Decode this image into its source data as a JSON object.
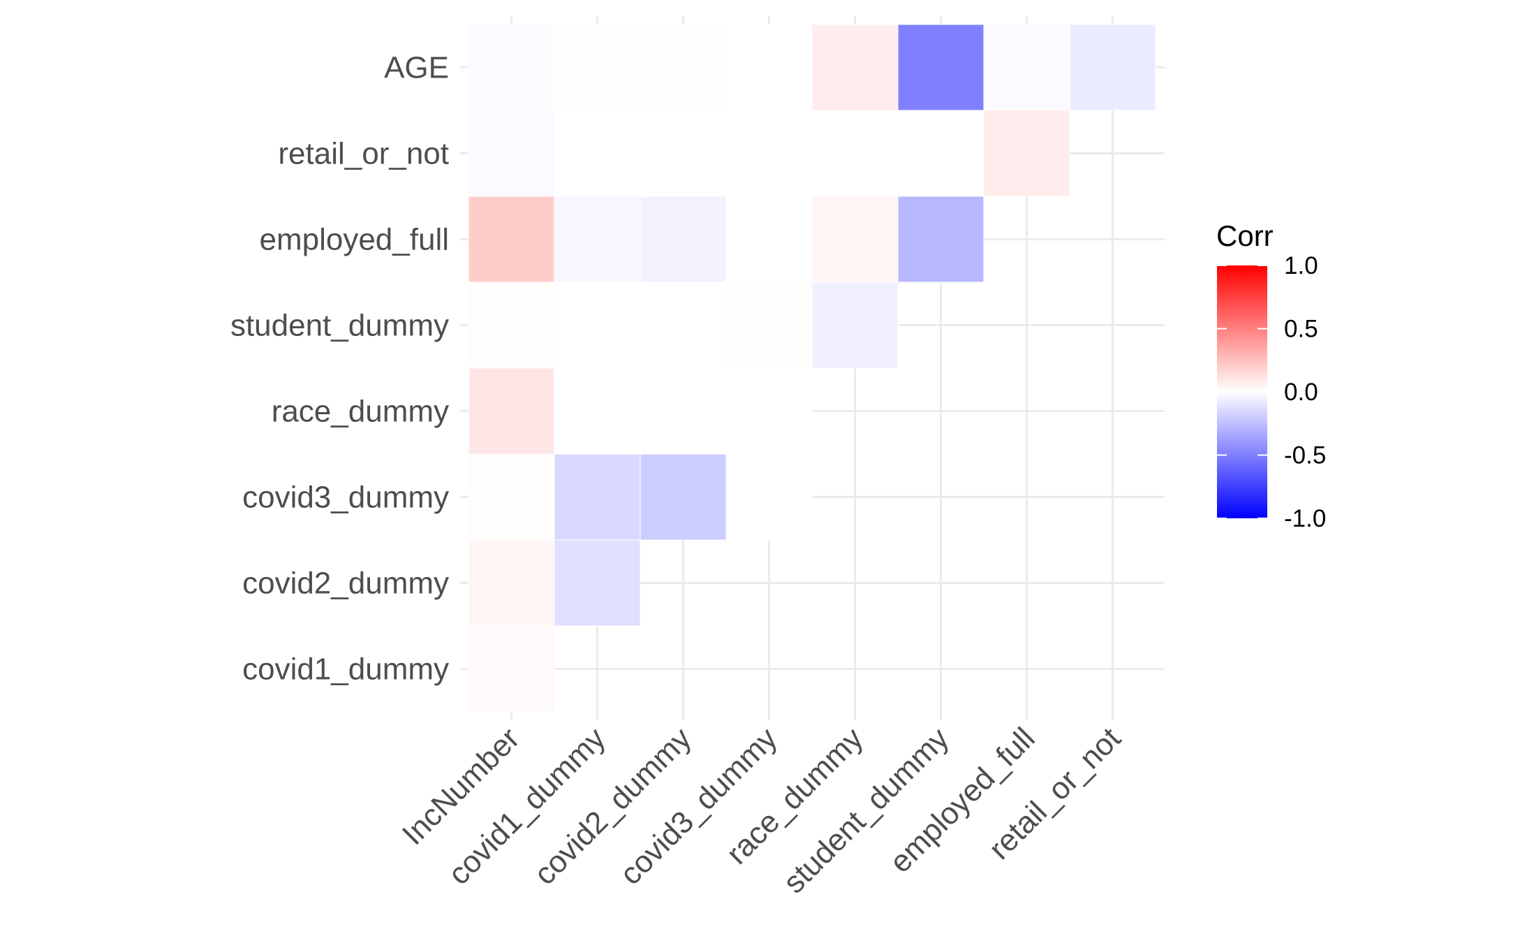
{
  "chart_data": {
    "type": "heatmap",
    "title": "",
    "xlabel": "",
    "ylabel": "",
    "x_categories": [
      "IncNumber",
      "covid1_dummy",
      "covid2_dummy",
      "covid3_dummy",
      "race_dummy",
      "student_dummy",
      "employed_full",
      "retail_or_not"
    ],
    "y_categories": [
      "covid1_dummy",
      "covid2_dummy",
      "covid3_dummy",
      "race_dummy",
      "student_dummy",
      "employed_full",
      "retail_or_not",
      "AGE"
    ],
    "cells": [
      {
        "x": "IncNumber",
        "y": "covid1_dummy",
        "value": 0.02
      },
      {
        "x": "IncNumber",
        "y": "covid2_dummy",
        "value": 0.04
      },
      {
        "x": "covid1_dummy",
        "y": "covid2_dummy",
        "value": -0.12
      },
      {
        "x": "IncNumber",
        "y": "covid3_dummy",
        "value": 0.01
      },
      {
        "x": "covid1_dummy",
        "y": "covid3_dummy",
        "value": -0.15
      },
      {
        "x": "covid2_dummy",
        "y": "covid3_dummy",
        "value": -0.2
      },
      {
        "x": "covid3_dummy",
        "y": "covid3_dummy",
        "value": 0.0
      },
      {
        "x": "IncNumber",
        "y": "race_dummy",
        "value": 0.1
      },
      {
        "x": "covid1_dummy",
        "y": "race_dummy",
        "value": 0.0
      },
      {
        "x": "covid2_dummy",
        "y": "race_dummy",
        "value": 0.0
      },
      {
        "x": "covid3_dummy",
        "y": "race_dummy",
        "value": 0.0
      },
      {
        "x": "IncNumber",
        "y": "student_dummy",
        "value": 0.01
      },
      {
        "x": "covid1_dummy",
        "y": "student_dummy",
        "value": 0.0
      },
      {
        "x": "covid2_dummy",
        "y": "student_dummy",
        "value": 0.0
      },
      {
        "x": "covid3_dummy",
        "y": "student_dummy",
        "value": 0.01
      },
      {
        "x": "race_dummy",
        "y": "student_dummy",
        "value": -0.06
      },
      {
        "x": "IncNumber",
        "y": "employed_full",
        "value": 0.2
      },
      {
        "x": "covid1_dummy",
        "y": "employed_full",
        "value": -0.03
      },
      {
        "x": "covid2_dummy",
        "y": "employed_full",
        "value": -0.05
      },
      {
        "x": "covid3_dummy",
        "y": "employed_full",
        "value": 0.0
      },
      {
        "x": "race_dummy",
        "y": "employed_full",
        "value": 0.04
      },
      {
        "x": "student_dummy",
        "y": "employed_full",
        "value": -0.28
      },
      {
        "x": "IncNumber",
        "y": "retail_or_not",
        "value": -0.02
      },
      {
        "x": "covid1_dummy",
        "y": "retail_or_not",
        "value": 0.0
      },
      {
        "x": "covid2_dummy",
        "y": "retail_or_not",
        "value": 0.0
      },
      {
        "x": "covid3_dummy",
        "y": "retail_or_not",
        "value": 0.0
      },
      {
        "x": "race_dummy",
        "y": "retail_or_not",
        "value": 0.0
      },
      {
        "x": "student_dummy",
        "y": "retail_or_not",
        "value": 0.0
      },
      {
        "x": "employed_full",
        "y": "retail_or_not",
        "value": 0.08
      },
      {
        "x": "IncNumber",
        "y": "AGE",
        "value": -0.02
      },
      {
        "x": "covid1_dummy",
        "y": "AGE",
        "value": 0.01
      },
      {
        "x": "covid2_dummy",
        "y": "AGE",
        "value": 0.01
      },
      {
        "x": "covid3_dummy",
        "y": "AGE",
        "value": 0.0
      },
      {
        "x": "race_dummy",
        "y": "AGE",
        "value": 0.07
      },
      {
        "x": "student_dummy",
        "y": "AGE",
        "value": -0.5
      },
      {
        "x": "employed_full",
        "y": "AGE",
        "value": -0.02
      },
      {
        "x": "retail_or_not",
        "y": "AGE",
        "value": -0.08
      }
    ],
    "legend": {
      "title": "Corr",
      "position": "right",
      "range": [
        -1.0,
        1.0
      ],
      "ticks": [
        1.0,
        0.5,
        0.0,
        -0.5,
        -1.0
      ],
      "tick_labels": [
        "1.0",
        "0.5",
        "0.0",
        "-0.5",
        "-1.0"
      ],
      "colors": {
        "low": "#0000FF",
        "mid": "#FFFFFF",
        "high": "#FF0000"
      }
    },
    "grid": true
  }
}
